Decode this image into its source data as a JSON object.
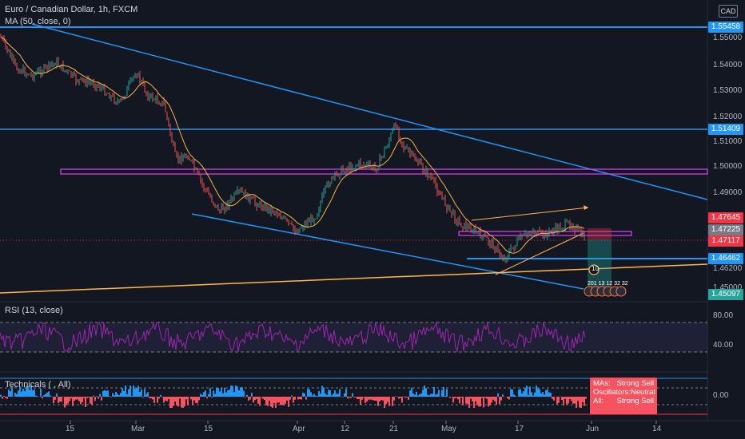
{
  "header": {
    "symbol_title": "Euro / Canadian Dollar, 1h, FXCM",
    "ma_label": "MA (50, close, 0)",
    "currency_badge": "CAD"
  },
  "price_axis": {
    "ticks": [
      "1.55000",
      "1.54000",
      "1.53000",
      "1.52000",
      "1.51000",
      "1.50000",
      "1.49000",
      "1.45000"
    ],
    "tags": [
      {
        "text": "1.55458",
        "color": "#2196f3"
      },
      {
        "text": "1.51409",
        "color": "#2196f3"
      },
      {
        "text": "1.47645",
        "color": "#f23645"
      },
      {
        "text": "1.47225",
        "color": "#787b86"
      },
      {
        "text": "1.47117",
        "color": "#f23645"
      },
      {
        "text": "1.46462",
        "color": "#2196f3"
      },
      {
        "text": "1.45097",
        "color": "#26a69a"
      }
    ],
    "partial_tick": "1.46200"
  },
  "rsi": {
    "label": "RSI (13, close)",
    "ticks": [
      "80.00",
      "40.00"
    ]
  },
  "technicals": {
    "label": "Technicals ( , All)",
    "tick": "0.00",
    "summary": [
      {
        "key": "MAs:",
        "value": "Strong Sell"
      },
      {
        "key": "Oscillators:",
        "value": "Neutral"
      },
      {
        "key": "All:",
        "value": "Strong Sell"
      }
    ]
  },
  "time_axis": {
    "labels": [
      "15",
      "Mar",
      "15",
      "Apr",
      "12",
      "21",
      "May",
      "17",
      "Jun",
      "14"
    ]
  },
  "markers": {
    "earnings_count": "10",
    "event_labels": "201 13 12 32 32"
  },
  "colors": {
    "background": "#131722",
    "candle_up": "#26a69a",
    "candle_down": "#ef5350",
    "ma_line": "#f5b642",
    "trendline_blue": "#2196f3",
    "zone_purple": "#e040fb",
    "rsi_line": "#9c27b0",
    "support_orange": "#ffb74d"
  }
}
